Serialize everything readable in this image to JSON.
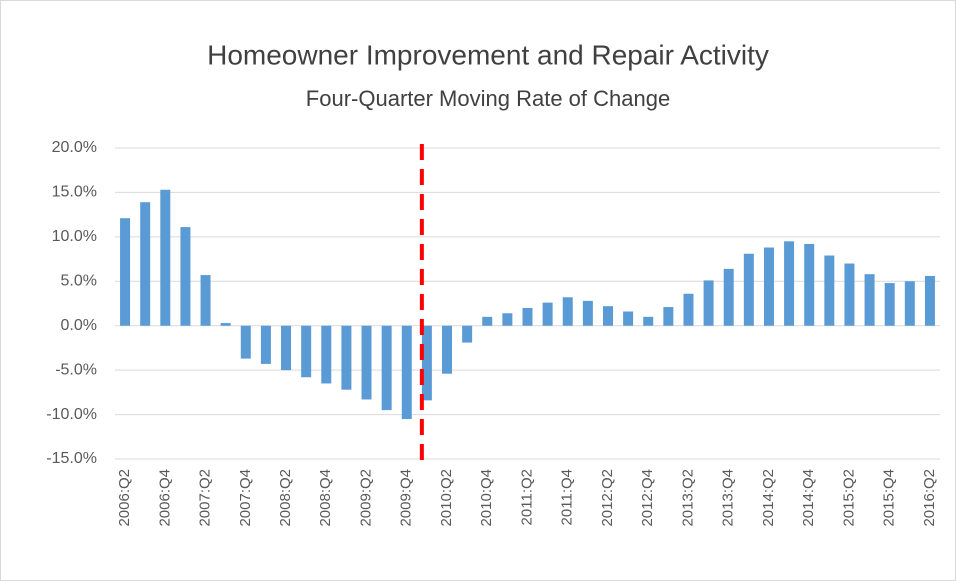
{
  "chart_data": {
    "type": "bar",
    "title": "Homeowner Improvement and Repair Activity",
    "subtitle": "Four-Quarter Moving Rate of Change",
    "categories": [
      "2006:Q2",
      null,
      "2006:Q4",
      null,
      "2007:Q2",
      null,
      "2007:Q4",
      null,
      "2008:Q2",
      null,
      "2008:Q4",
      null,
      "2009:Q2",
      null,
      "2009:Q4",
      null,
      "2010:Q2",
      null,
      "2010:Q4",
      null,
      "2011:Q2",
      null,
      "2011:Q4",
      null,
      "2012:Q2",
      null,
      "2012:Q4",
      null,
      "2013:Q2",
      null,
      "2013:Q4",
      null,
      "2014:Q2",
      null,
      "2014:Q4",
      null,
      "2015:Q2",
      null,
      "2015:Q4",
      null,
      "2016:Q2"
    ],
    "values": [
      12.1,
      13.9,
      15.3,
      11.1,
      5.7,
      0.3,
      -3.7,
      -4.3,
      -5.0,
      -5.8,
      -6.5,
      -7.2,
      -8.3,
      -9.5,
      -10.5,
      -8.4,
      -5.4,
      -1.9,
      1.0,
      1.4,
      2.0,
      2.6,
      3.2,
      2.8,
      2.2,
      1.6,
      1.0,
      2.1,
      3.6,
      5.1,
      6.4,
      8.1,
      8.8,
      9.5,
      9.2,
      7.9,
      7.0,
      5.8,
      4.8,
      5.0,
      5.6
    ],
    "color": "#5b9bd5",
    "ylim": [
      -15,
      20
    ],
    "yticks": [
      {
        "value": -15,
        "label": "-15.0%"
      },
      {
        "value": -10,
        "label": "-10.0%"
      },
      {
        "value": -5,
        "label": "-5.0%"
      },
      {
        "value": 0,
        "label": "0.0%"
      },
      {
        "value": 5,
        "label": "5.0%"
      },
      {
        "value": 10,
        "label": "10.0%"
      },
      {
        "value": 15,
        "label": "15.0%"
      },
      {
        "value": 20,
        "label": "20.0%"
      }
    ],
    "grid": true,
    "reference_line": {
      "category_index": 15,
      "color": "#ff0000",
      "style": "dashed"
    }
  }
}
